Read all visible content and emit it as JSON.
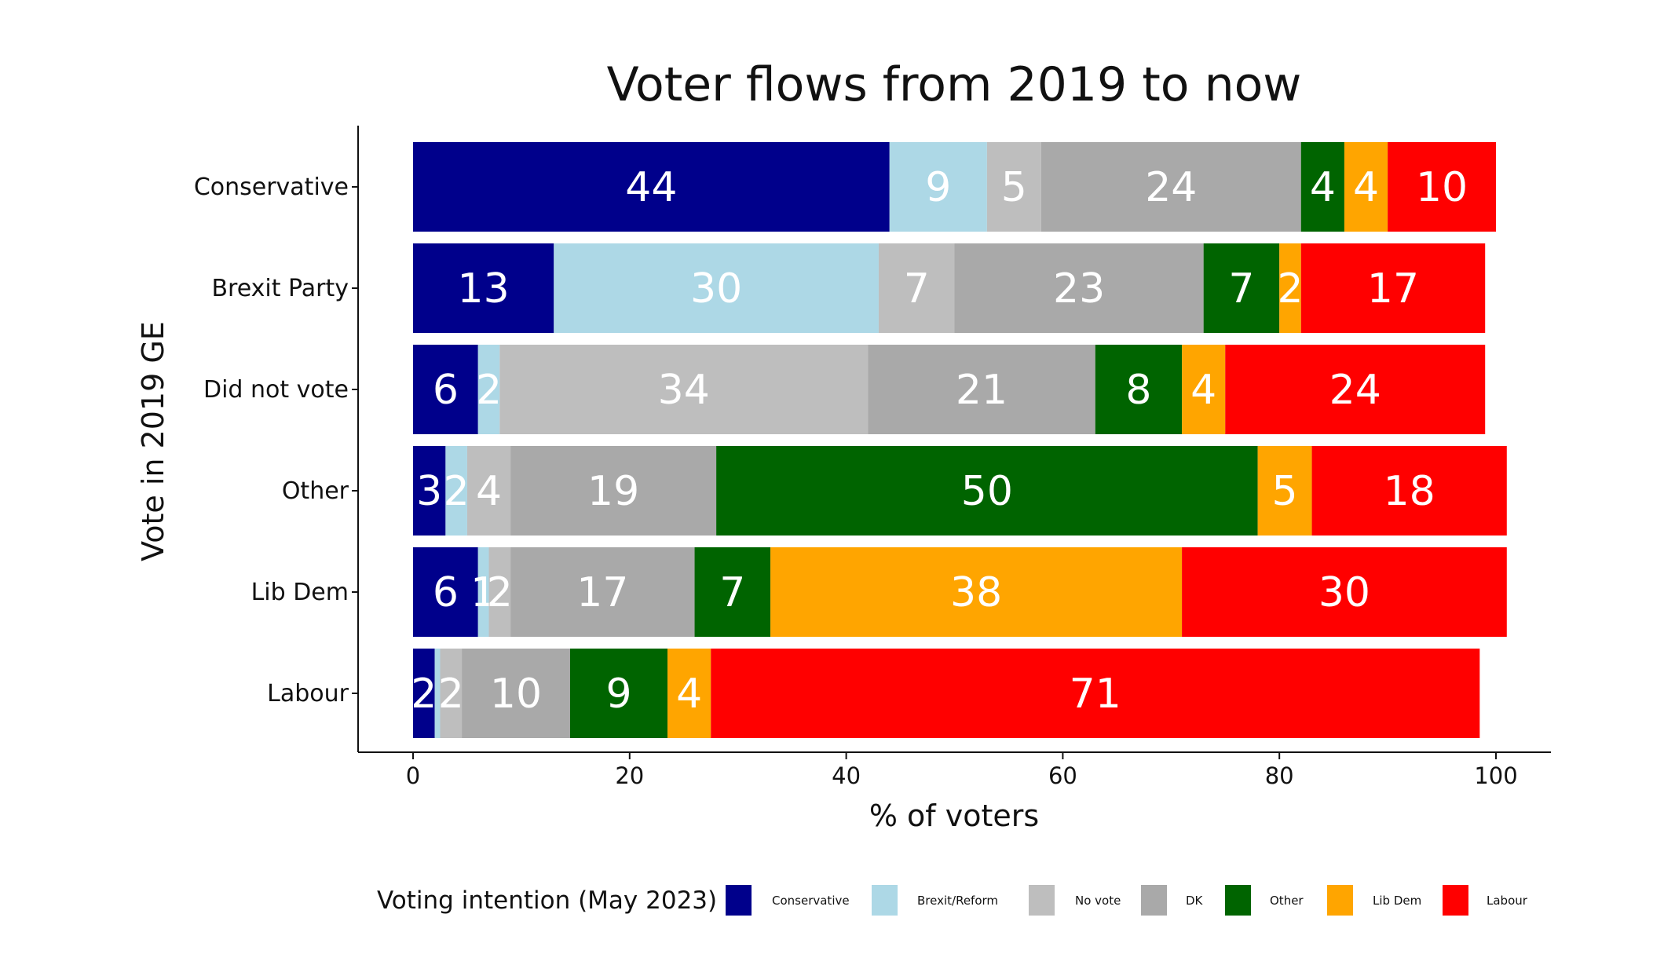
{
  "chart_data": {
    "type": "bar",
    "orientation": "horizontal",
    "stacked": true,
    "title": "Voter flows from 2019 to now",
    "xlabel": "% of voters",
    "ylabel": "Vote in 2019 GE",
    "xlim": [
      0,
      100
    ],
    "xticks": [
      0,
      20,
      40,
      60,
      80,
      100
    ],
    "grid": false,
    "legend_position": "bottom",
    "legend_title": "Voting intention (May 2023)",
    "categories": [
      "Conservative",
      "Brexit Party",
      "Did not vote",
      "Other",
      "Lib Dem",
      "Labour"
    ],
    "series": [
      {
        "name": "Conservative",
        "color": "#00008B",
        "values": [
          44,
          13,
          6,
          3,
          6,
          2
        ],
        "labels": [
          "44",
          "13",
          "6",
          "3",
          "6",
          "2"
        ]
      },
      {
        "name": "Brexit/Reform",
        "color": "#ADD8E6",
        "values": [
          9,
          30,
          2,
          2,
          1,
          0.5
        ],
        "labels": [
          "9",
          "30",
          "2",
          "2",
          "1",
          ""
        ]
      },
      {
        "name": "No vote",
        "color": "#BEBEBE",
        "values": [
          5,
          7,
          34,
          4,
          2,
          2
        ],
        "labels": [
          "5",
          "7",
          "34",
          "4",
          "2",
          "2"
        ]
      },
      {
        "name": "DK",
        "color": "#A9A9A9",
        "values": [
          24,
          23,
          21,
          19,
          17,
          10
        ],
        "labels": [
          "24",
          "23",
          "21",
          "19",
          "17",
          "10"
        ]
      },
      {
        "name": "Other",
        "color": "#006400",
        "values": [
          4,
          7,
          8,
          50,
          7,
          9
        ],
        "labels": [
          "4",
          "7",
          "8",
          "50",
          "7",
          "9"
        ]
      },
      {
        "name": "Lib Dem",
        "color": "#FFA500",
        "values": [
          4,
          2,
          4,
          5,
          38,
          4
        ],
        "labels": [
          "4",
          "2",
          "4",
          "5",
          "38",
          "4"
        ]
      },
      {
        "name": "Labour",
        "color": "#FF0000",
        "values": [
          10,
          17,
          24,
          18,
          30,
          71
        ],
        "labels": [
          "10",
          "17",
          "24",
          "18",
          "30",
          "71"
        ]
      }
    ]
  }
}
